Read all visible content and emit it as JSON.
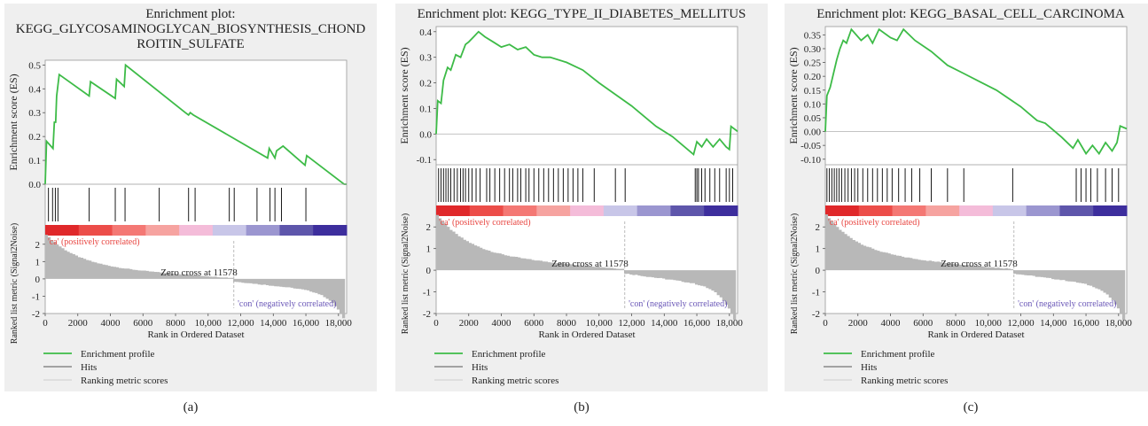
{
  "colors": {
    "panel_bg": "#efefef",
    "plot_bg": "#ffffff",
    "profile": "#3dbb47",
    "hits": "#000000",
    "metric": "#b8b8b8",
    "positive_label": "#e8443f",
    "negative_label": "#6a57b7",
    "heat": [
      "#e0282a",
      "#ec4d49",
      "#f47874",
      "#f6a3a0",
      "#f4bcd9",
      "#c8c6e8",
      "#9b96d0",
      "#5e56ab",
      "#3d2e9d"
    ]
  },
  "labels": {
    "positive": "'ca' (positively correlated)",
    "negative": "'con' (negatively correlated)",
    "zero_cross": "Zero cross at 11578",
    "legend": [
      "Enrichment profile",
      "Hits",
      "Ranking metric scores"
    ]
  },
  "chart_data": [
    {
      "type": "line",
      "caption": "(a)",
      "title": "Enrichment plot:\nKEGG_GLYCOSAMINOGLYCAN_BIOSYNTHESIS_CHOND\nROITIN_SULFATE",
      "xlabel": "Rank in Ordered Dataset",
      "ylabel": "Enrichment score (ES)",
      "ylabel_metric": "Ranked list metric (Signal2Noise)",
      "xlim": [
        0,
        18500
      ],
      "xticks": [
        0,
        2000,
        4000,
        6000,
        8000,
        10000,
        12000,
        14000,
        16000,
        18000
      ],
      "xtick_labels": [
        "0",
        "2000",
        "4000",
        "6000",
        "8000",
        "10,000",
        "12,000",
        "14,000",
        "16,000",
        "18,000"
      ],
      "ylim": [
        0,
        0.52
      ],
      "yticks": [
        0,
        0.1,
        0.2,
        0.3,
        0.4,
        0.5
      ],
      "ytick_labels": [
        "0.0",
        "0.1",
        "0.2",
        "0.3",
        "0.4",
        "0.5"
      ],
      "metric_ylim": [
        -2,
        2.5
      ],
      "metric_yticks": [
        2,
        1,
        0,
        -1,
        -2
      ],
      "zero_cross": 11578,
      "hits": [
        200,
        450,
        620,
        780,
        2700,
        4300,
        4900,
        7000,
        8800,
        9200,
        11300,
        11600,
        13000,
        13800,
        14100,
        14500,
        16000
      ],
      "profile": [
        [
          0,
          0
        ],
        [
          80,
          0.18
        ],
        [
          480,
          0.15
        ],
        [
          560,
          0.26
        ],
        [
          640,
          0.26
        ],
        [
          700,
          0.37
        ],
        [
          860,
          0.46
        ],
        [
          2700,
          0.37
        ],
        [
          2780,
          0.43
        ],
        [
          4300,
          0.36
        ],
        [
          4380,
          0.44
        ],
        [
          4850,
          0.41
        ],
        [
          4930,
          0.5
        ],
        [
          8600,
          0.3
        ],
        [
          8800,
          0.29
        ],
        [
          8900,
          0.3
        ],
        [
          9100,
          0.29
        ],
        [
          13650,
          0.11
        ],
        [
          13750,
          0.15
        ],
        [
          14100,
          0.11
        ],
        [
          14200,
          0.14
        ],
        [
          14600,
          0.16
        ],
        [
          15950,
          0.08
        ],
        [
          16050,
          0.12
        ],
        [
          18350,
          0
        ],
        [
          18500,
          0
        ]
      ]
    },
    {
      "type": "line",
      "caption": "(b)",
      "title": "Enrichment plot: KEGG_TYPE_II_DIABETES_MELLITUS",
      "xlabel": "Rank in Ordered Dataset",
      "ylabel": "Enrichment score (ES)",
      "ylabel_metric": "Ranked list metric (Signal2Noise)",
      "xlim": [
        0,
        18500
      ],
      "xticks": [
        0,
        2000,
        4000,
        6000,
        8000,
        10000,
        12000,
        14000,
        16000,
        18000
      ],
      "xtick_labels": [
        "0",
        "2000",
        "4000",
        "6000",
        "8000",
        "10,000",
        "12,000",
        "14,000",
        "16,000",
        "18,000"
      ],
      "ylim": [
        -0.12,
        0.42
      ],
      "yticks": [
        -0.1,
        0,
        0.1,
        0.2,
        0.3,
        0.4
      ],
      "ytick_labels": [
        "-0.1",
        "0.0",
        "0.1",
        "0.2",
        "0.3",
        "0.4"
      ],
      "metric_ylim": [
        -2,
        2.5
      ],
      "metric_yticks": [
        2,
        1,
        0,
        -1,
        -2
      ],
      "zero_cross": 11578,
      "hits": [
        150,
        300,
        450,
        600,
        750,
        900,
        1100,
        1300,
        1500,
        1650,
        1800,
        2000,
        2200,
        2450,
        2700,
        3100,
        3300,
        3600,
        3900,
        4200,
        4500,
        4700,
        5000,
        5200,
        5500,
        5700,
        6000,
        6300,
        6600,
        6900,
        7200,
        7500,
        7800,
        8100,
        8400,
        8700,
        9000,
        9700,
        11000,
        11600,
        15900,
        16000,
        16100,
        16300,
        16500,
        16800,
        17100,
        17400,
        17800,
        18000,
        18200
      ],
      "profile": [
        [
          0,
          0
        ],
        [
          100,
          0.13
        ],
        [
          300,
          0.12
        ],
        [
          450,
          0.21
        ],
        [
          700,
          0.26
        ],
        [
          900,
          0.25
        ],
        [
          1200,
          0.31
        ],
        [
          1500,
          0.3
        ],
        [
          1800,
          0.35
        ],
        [
          2000,
          0.36
        ],
        [
          2300,
          0.38
        ],
        [
          2600,
          0.4
        ],
        [
          3000,
          0.38
        ],
        [
          3500,
          0.36
        ],
        [
          4000,
          0.34
        ],
        [
          4500,
          0.35
        ],
        [
          5000,
          0.33
        ],
        [
          5500,
          0.34
        ],
        [
          6000,
          0.31
        ],
        [
          6500,
          0.3
        ],
        [
          7000,
          0.3
        ],
        [
          8000,
          0.28
        ],
        [
          9000,
          0.25
        ],
        [
          10000,
          0.2
        ],
        [
          12000,
          0.11
        ],
        [
          13500,
          0.03
        ],
        [
          14500,
          -0.01
        ],
        [
          15800,
          -0.08
        ],
        [
          16000,
          -0.03
        ],
        [
          16300,
          -0.05
        ],
        [
          16600,
          -0.02
        ],
        [
          17000,
          -0.05
        ],
        [
          17400,
          -0.02
        ],
        [
          17800,
          -0.05
        ],
        [
          18000,
          -0.06
        ],
        [
          18100,
          0.03
        ],
        [
          18500,
          0.01
        ]
      ]
    },
    {
      "type": "line",
      "caption": "(c)",
      "title": "Enrichment plot: KEGG_BASAL_CELL_CARCINOMA",
      "xlabel": "Rank in Ordered Dataset",
      "ylabel": "Enrichment score (ES)",
      "ylabel_metric": "Ranked list metric (Signal2Noise)",
      "xlim": [
        0,
        18500
      ],
      "xticks": [
        0,
        2000,
        4000,
        6000,
        8000,
        10000,
        12000,
        14000,
        16000,
        18000
      ],
      "xtick_labels": [
        "0",
        "2000",
        "4000",
        "6000",
        "8000",
        "10,000",
        "12,000",
        "14,000",
        "16,000",
        "18,000"
      ],
      "ylim": [
        -0.12,
        0.38
      ],
      "yticks": [
        -0.1,
        -0.05,
        0,
        0.05,
        0.1,
        0.15,
        0.2,
        0.25,
        0.3,
        0.35
      ],
      "ytick_labels": [
        "-0.10",
        "-0.05",
        "0.00",
        "0.05",
        "0.10",
        "0.15",
        "0.20",
        "0.25",
        "0.30",
        "0.35"
      ],
      "metric_ylim": [
        -2,
        2.5
      ],
      "metric_yticks": [
        2,
        1,
        0,
        -1,
        -2
      ],
      "zero_cross": 11578,
      "hits": [
        100,
        250,
        400,
        550,
        700,
        850,
        1000,
        1200,
        1400,
        1600,
        1800,
        2000,
        2300,
        2600,
        2900,
        3200,
        3500,
        3800,
        4100,
        4500,
        4900,
        5300,
        5800,
        6500,
        7500,
        8500,
        11500,
        15400,
        15700,
        16000,
        16300,
        16700,
        17200,
        17600,
        18000
      ],
      "profile": [
        [
          0,
          0
        ],
        [
          100,
          0.13
        ],
        [
          300,
          0.16
        ],
        [
          500,
          0.21
        ],
        [
          700,
          0.26
        ],
        [
          900,
          0.3
        ],
        [
          1100,
          0.33
        ],
        [
          1300,
          0.32
        ],
        [
          1600,
          0.37
        ],
        [
          2200,
          0.33
        ],
        [
          2600,
          0.35
        ],
        [
          2900,
          0.32
        ],
        [
          3300,
          0.37
        ],
        [
          4000,
          0.34
        ],
        [
          4400,
          0.33
        ],
        [
          4800,
          0.37
        ],
        [
          5500,
          0.33
        ],
        [
          6500,
          0.29
        ],
        [
          7500,
          0.24
        ],
        [
          8500,
          0.21
        ],
        [
          9500,
          0.18
        ],
        [
          10500,
          0.15
        ],
        [
          12000,
          0.09
        ],
        [
          13000,
          0.04
        ],
        [
          13500,
          0.03
        ],
        [
          14500,
          -0.02
        ],
        [
          15200,
          -0.06
        ],
        [
          15500,
          -0.03
        ],
        [
          16000,
          -0.08
        ],
        [
          16400,
          -0.05
        ],
        [
          16800,
          -0.08
        ],
        [
          17200,
          -0.04
        ],
        [
          17600,
          -0.07
        ],
        [
          17900,
          -0.04
        ],
        [
          18100,
          0.02
        ],
        [
          18500,
          0.01
        ]
      ]
    }
  ]
}
